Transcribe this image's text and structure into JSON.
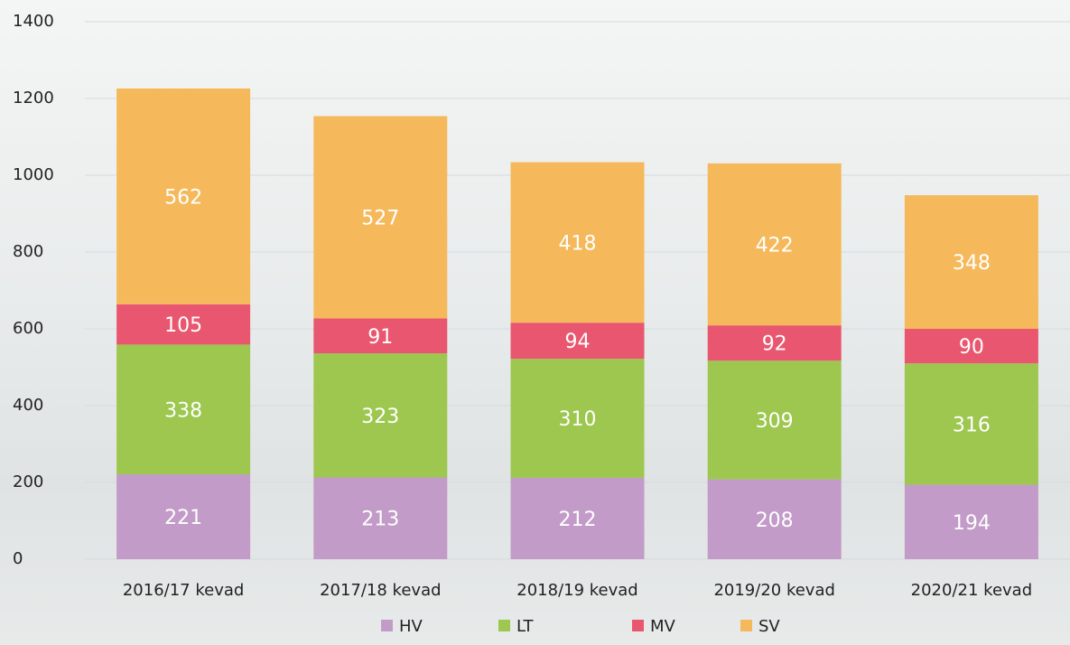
{
  "chart_data": {
    "type": "stacked_bar",
    "categories": [
      "2016/17 kevad",
      "2017/18 kevad",
      "2018/19 kevad",
      "2019/20 kevad",
      "2020/21 kevad"
    ],
    "series": [
      {
        "name": "HV",
        "color": "#c29bc8",
        "values": [
          221,
          213,
          212,
          208,
          194
        ]
      },
      {
        "name": "LT",
        "color": "#9dc74f",
        "values": [
          338,
          323,
          310,
          309,
          316
        ]
      },
      {
        "name": "MV",
        "color": "#e8576f",
        "values": [
          105,
          91,
          94,
          92,
          90
        ]
      },
      {
        "name": "SV",
        "color": "#f5b95b",
        "values": [
          562,
          527,
          418,
          422,
          348
        ]
      }
    ],
    "ylim": [
      0,
      1400
    ],
    "yticks": [
      0,
      200,
      400,
      600,
      800,
      1000,
      1200,
      1400
    ],
    "grid": true,
    "legend": "bottom"
  }
}
